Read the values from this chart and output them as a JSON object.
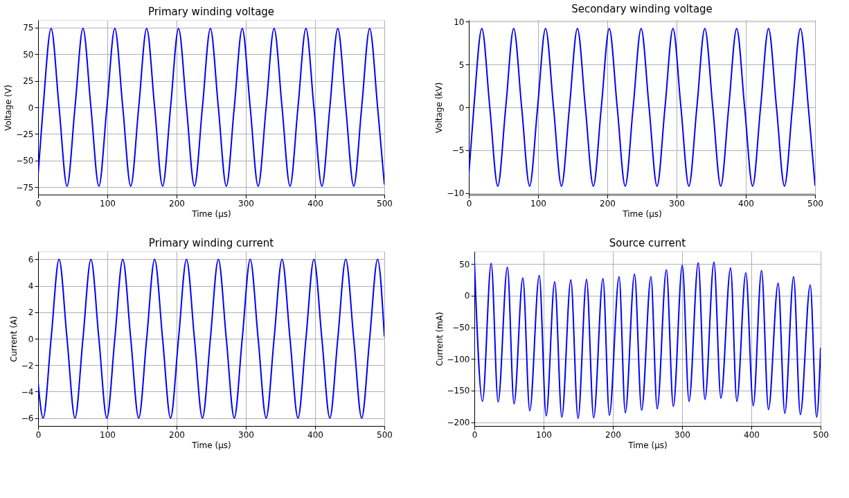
{
  "chart_data": [
    {
      "type": "line",
      "title": "Primary winding voltage",
      "xlabel": "Time (µs)",
      "ylabel": "Voltage (V)",
      "xlim": [
        0,
        500
      ],
      "xticks": [
        0,
        100,
        200,
        300,
        400,
        500
      ],
      "ylim": [
        -82,
        82
      ],
      "yticks": [
        -75,
        -50,
        -25,
        0,
        25,
        50,
        75
      ],
      "grid": true,
      "line_style": "solid",
      "marker": "none",
      "x": [
        0,
        7.3,
        18.8,
        30.3,
        41.8,
        53.3,
        64.8,
        76.3,
        87.8,
        99.3,
        110.8,
        122.3,
        133.8,
        145.3,
        156.8,
        168.3,
        179.8,
        191.3,
        202.8,
        214.3,
        225.8,
        237.3,
        248.8,
        260.3,
        271.8,
        283.3,
        294.8,
        306.3,
        317.8,
        329.3,
        340.8,
        352.3,
        363.8,
        375.3,
        386.8,
        398.3,
        409.8,
        421.3,
        432.8,
        444.3,
        455.8,
        467.3,
        478.8,
        490.3,
        500
      ],
      "series": [
        {
          "color": "#0000ff",
          "values": [
            -63,
            0,
            74,
            0,
            -74,
            0,
            74,
            0,
            -74,
            0,
            74,
            0,
            -74,
            0,
            74,
            0,
            -74,
            0,
            74,
            0,
            -74,
            0,
            74,
            0,
            -74,
            0,
            74,
            0,
            -74,
            0,
            74,
            0,
            -74,
            0,
            74,
            0,
            -74,
            0,
            74,
            0,
            -74,
            0,
            74,
            0,
            -72
          ]
        }
      ]
    },
    {
      "type": "line",
      "title": "Secondary winding voltage",
      "xlabel": "Time (µs)",
      "ylabel": "Voltage (kV)",
      "xlim": [
        0,
        500
      ],
      "xticks": [
        0,
        100,
        200,
        300,
        400,
        500
      ],
      "ylim": [
        -10.2,
        10.2
      ],
      "yticks": [
        -10,
        -5,
        0,
        5,
        10
      ],
      "grid": true,
      "line_style": "solid",
      "marker": "none",
      "x": [
        0,
        7.3,
        18.8,
        30.3,
        41.8,
        53.3,
        64.8,
        76.3,
        87.8,
        99.3,
        110.8,
        122.3,
        133.8,
        145.3,
        156.8,
        168.3,
        179.8,
        191.3,
        202.8,
        214.3,
        225.8,
        237.3,
        248.8,
        260.3,
        271.8,
        283.3,
        294.8,
        306.3,
        317.8,
        329.3,
        340.8,
        352.3,
        363.8,
        375.3,
        386.8,
        398.3,
        409.8,
        421.3,
        432.8,
        444.3,
        455.8,
        467.3,
        478.8,
        490.3,
        500
      ],
      "series": [
        {
          "color": "#0000ff",
          "values": [
            -7.8,
            0,
            9.2,
            0,
            -9.2,
            0,
            9.2,
            0,
            -9.2,
            0,
            9.2,
            0,
            -9.2,
            0,
            9.2,
            0,
            -9.2,
            0,
            9.2,
            0,
            -9.2,
            0,
            9.2,
            0,
            -9.2,
            0,
            9.2,
            0,
            -9.2,
            0,
            9.2,
            0,
            -9.2,
            0,
            9.2,
            0,
            -9.2,
            0,
            9.2,
            0,
            -9.2,
            0,
            9.2,
            0,
            -9.1
          ]
        }
      ]
    },
    {
      "type": "line",
      "title": "Primary winding current",
      "xlabel": "Time (µs)",
      "ylabel": "Current (A)",
      "xlim": [
        0,
        500
      ],
      "xticks": [
        0,
        100,
        200,
        300,
        400,
        500
      ],
      "ylim": [
        -6.6,
        6.6
      ],
      "yticks": [
        -6,
        -4,
        -2,
        0,
        2,
        4,
        6
      ],
      "grid": true,
      "line_style": "solid",
      "marker": "none",
      "x": [
        0,
        7.3,
        18.8,
        30.3,
        41.8,
        53.3,
        64.8,
        76.3,
        87.8,
        99.3,
        110.8,
        122.3,
        133.8,
        145.3,
        156.8,
        168.3,
        179.8,
        191.3,
        202.8,
        214.3,
        225.8,
        237.3,
        248.8,
        260.3,
        271.8,
        283.3,
        294.8,
        306.3,
        317.8,
        329.3,
        340.8,
        352.3,
        363.8,
        375.3,
        386.8,
        398.3,
        409.8,
        421.3,
        432.8,
        444.3,
        455.8,
        467.3,
        478.8,
        490.3,
        500
      ],
      "series": [
        {
          "color": "#0000ff",
          "values": [
            -3.3,
            -6,
            0,
            6,
            0,
            -6,
            0,
            6,
            0,
            -6,
            0,
            6,
            0,
            -6,
            0,
            6,
            0,
            -6,
            0,
            6,
            0,
            -6,
            0,
            6,
            0,
            -6,
            0,
            6,
            0,
            -6,
            0,
            6,
            0,
            -6,
            0,
            6,
            0,
            -6,
            0,
            6,
            0,
            -6,
            0,
            6,
            0.2
          ]
        }
      ]
    },
    {
      "type": "line",
      "title": "Source current",
      "xlabel": "Time (µs)",
      "ylabel": "Current (mA)",
      "xlim": [
        0,
        500
      ],
      "xticks": [
        0,
        100,
        200,
        300,
        400,
        500
      ],
      "ylim": [
        -206,
        70
      ],
      "yticks": [
        -200,
        -150,
        -100,
        -50,
        0,
        50
      ],
      "grid": true,
      "line_style": "solid",
      "marker": "none",
      "x": [
        0,
        11.7,
        24.3,
        34.3,
        47.7,
        57.3,
        70,
        80,
        93.7,
        103.7,
        116,
        126.3,
        139.3,
        149.7,
        162,
        172.3,
        185.7,
        195,
        209,
        218,
        231.3,
        241.5,
        255,
        264,
        277.3,
        287.3,
        300.3,
        310,
        323.3,
        333,
        346,
        356,
        370,
        379,
        392,
        402.7,
        414.7,
        424.7,
        438.7,
        448.3,
        461,
        470.7,
        485,
        494.3,
        500
      ],
      "series": [
        {
          "color": "#0000ff",
          "values": [
            56,
            -167,
            51,
            -168,
            45,
            -171,
            28,
            -182,
            32,
            -190,
            22,
            -192,
            25,
            -194,
            26,
            -193,
            27,
            -189,
            30,
            -185,
            34,
            -181,
            30,
            -179,
            41,
            -175,
            48,
            -167,
            52,
            -164,
            53,
            -162,
            44,
            -167,
            36,
            -174,
            40,
            -180,
            20,
            -186,
            30,
            -188,
            17,
            -192,
            -83
          ]
        }
      ]
    }
  ]
}
